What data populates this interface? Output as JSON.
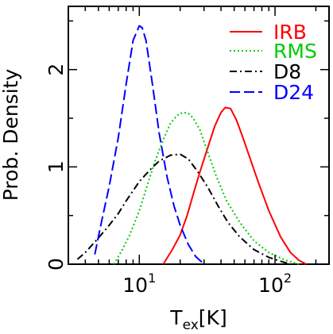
{
  "chart_data": {
    "type": "line",
    "title": "",
    "xlabel": "T",
    "xlabel_sub": "ex",
    "xlabel_unit": "[K]",
    "ylabel": "Prob. Density",
    "xscale": "log",
    "xlim": [
      3,
      250
    ],
    "ylim": [
      0,
      2.65
    ],
    "x_ticks": [
      {
        "value": 10,
        "base": "10",
        "exp": "1"
      },
      {
        "value": 100,
        "base": "10",
        "exp": "2"
      }
    ],
    "y_ticks": [
      {
        "value": 0,
        "label": "0"
      },
      {
        "value": 1,
        "label": "1"
      },
      {
        "value": 2,
        "label": "2"
      }
    ],
    "grid": false,
    "legend_position": "top-right",
    "series": [
      {
        "name": "IRB",
        "color": "#ff0000",
        "dash": "solid",
        "x": [
          15,
          17.5,
          20,
          22.5,
          25,
          28,
          32,
          36,
          40,
          43,
          47,
          52,
          58,
          65,
          75,
          90,
          110,
          130,
          150,
          170
        ],
        "y": [
          0,
          0.15,
          0.3,
          0.5,
          0.72,
          0.95,
          1.2,
          1.42,
          1.56,
          1.61,
          1.6,
          1.48,
          1.3,
          1.1,
          0.85,
          0.55,
          0.28,
          0.12,
          0.04,
          0
        ]
      },
      {
        "name": "RMS",
        "color": "#00cc00",
        "dash": "dotted",
        "x": [
          6.5,
          7.5,
          8.5,
          10,
          11.5,
          13,
          15,
          17,
          19,
          21,
          23,
          25,
          28,
          32,
          37,
          44,
          55,
          70,
          90,
          120,
          150
        ],
        "y": [
          0,
          0.15,
          0.3,
          0.55,
          0.82,
          1.05,
          1.28,
          1.45,
          1.53,
          1.56,
          1.55,
          1.5,
          1.38,
          1.15,
          0.9,
          0.65,
          0.43,
          0.24,
          0.12,
          0.04,
          0
        ]
      },
      {
        "name": "D8",
        "color": "#000000",
        "dash": "dashdot",
        "x": [
          3.5,
          4,
          5,
          6,
          7,
          8,
          10,
          12,
          14,
          17,
          20,
          23,
          27,
          32,
          38,
          45,
          55,
          70,
          90,
          110,
          130
        ],
        "y": [
          0.05,
          0.12,
          0.27,
          0.4,
          0.52,
          0.65,
          0.85,
          0.97,
          1.06,
          1.12,
          1.13,
          1.08,
          0.95,
          0.79,
          0.6,
          0.43,
          0.28,
          0.15,
          0.07,
          0.03,
          0
        ]
      },
      {
        "name": "D24",
        "color": "#0000ff",
        "dash": "longdash",
        "x": [
          4.7,
          5.2,
          6,
          7,
          8,
          9,
          10,
          10.5,
          11.2,
          12.5,
          14,
          16,
          18,
          20,
          23,
          26,
          30
        ],
        "y": [
          0.1,
          0.4,
          0.8,
          1.3,
          1.85,
          2.3,
          2.45,
          2.43,
          2.3,
          1.85,
          1.35,
          0.9,
          0.6,
          0.4,
          0.2,
          0.08,
          0
        ]
      }
    ]
  }
}
